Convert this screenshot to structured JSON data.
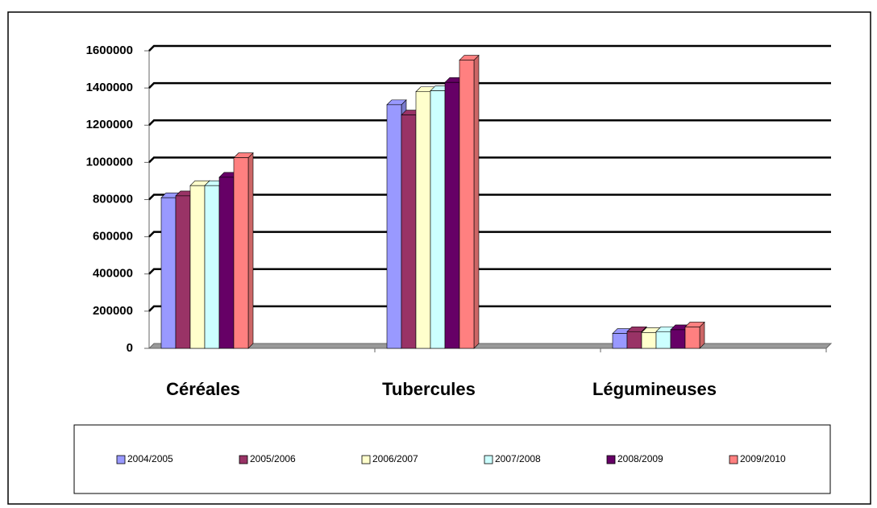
{
  "chart_data": {
    "type": "bar",
    "categories": [
      "Céréales",
      "Tubercules",
      "Légumineuses"
    ],
    "series": [
      {
        "name": "2004/2005",
        "color": "#9999ff",
        "values": [
          810000,
          1310000,
          80000
        ]
      },
      {
        "name": "2005/2006",
        "color": "#993366",
        "values": [
          820000,
          1255000,
          90000
        ]
      },
      {
        "name": "2006/2007",
        "color": "#ffffcc",
        "values": [
          875000,
          1380000,
          85000
        ]
      },
      {
        "name": "2007/2008",
        "color": "#ccffff",
        "values": [
          875000,
          1385000,
          90000
        ]
      },
      {
        "name": "2008/2009",
        "color": "#660066",
        "values": [
          920000,
          1430000,
          100000
        ]
      },
      {
        "name": "2009/2010",
        "color": "#ff8080",
        "values": [
          1025000,
          1550000,
          115000
        ]
      }
    ],
    "ylim": [
      0,
      1600000
    ],
    "yticks": [
      0,
      200000,
      400000,
      600000,
      800000,
      1000000,
      1200000,
      1400000,
      1600000
    ],
    "grid": true,
    "legend": "bottom"
  }
}
